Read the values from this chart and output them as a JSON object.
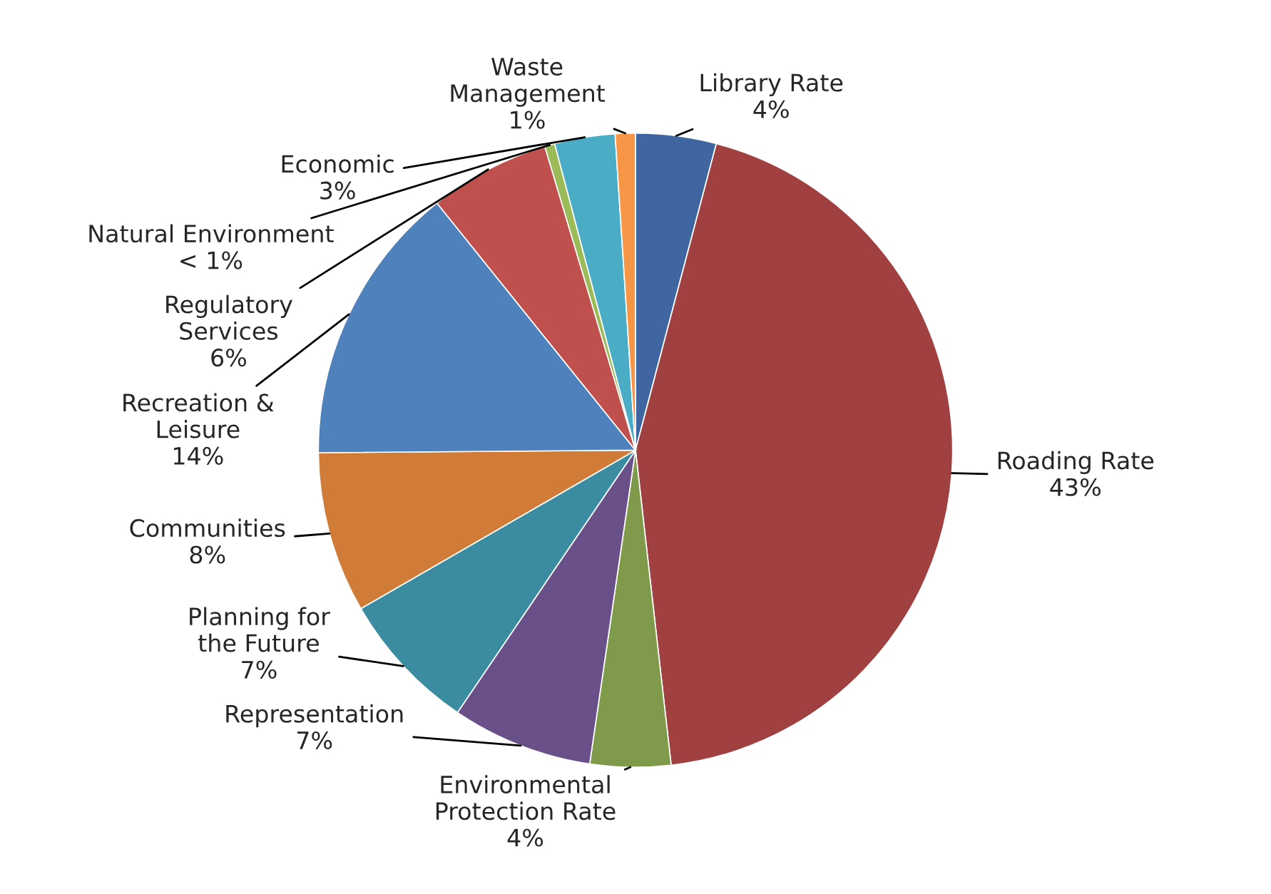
{
  "chart_data": {
    "type": "pie",
    "categories": [
      "Library Rate",
      "Roading Rate",
      "Environmental\nProtection Rate",
      "Representation",
      "Planning for\nthe Future",
      "Communities",
      "Recreation &\nLeisure",
      "Regulatory\nServices",
      "Natural Environment",
      "Economic",
      "Waste\nManagement"
    ],
    "values": [
      4,
      43,
      4,
      7,
      7,
      8,
      14,
      6,
      0.5,
      3,
      1
    ],
    "value_labels": [
      "4%",
      "43%",
      "4%",
      "7%",
      "7%",
      "8%",
      "14%",
      "6%",
      "< 1%",
      "3%",
      "1%"
    ],
    "colors": [
      "#3f66a0",
      "#a04040",
      "#7f9a4a",
      "#6a5088",
      "#3b8ca0",
      "#d07c38",
      "#4f81bd",
      "#c0504d",
      "#9bbb59",
      "#4bacc6",
      "#f79646"
    ],
    "legend": false
  }
}
